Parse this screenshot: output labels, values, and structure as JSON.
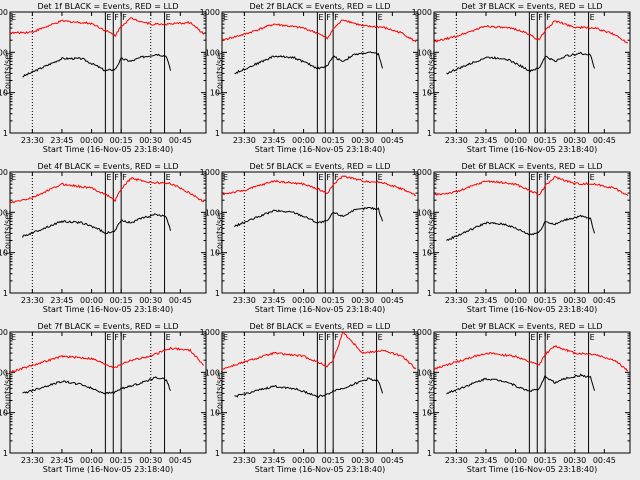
{
  "figure": {
    "background": "#ececec",
    "event_color": "#000000",
    "lld_color": "#ff0000",
    "ylabel": "Counts/sec",
    "xlabel": "Start Time (16-Nov-05 23:18:40)",
    "x_tick_labels": [
      "23:30",
      "23:45",
      "00:00",
      "00:15",
      "00:30",
      "00:45"
    ],
    "y_tick_labels": [
      "1",
      "10",
      "100",
      "1000"
    ],
    "marker_labels": [
      "E",
      "F",
      "F",
      "E"
    ]
  },
  "chart_data": [
    {
      "type": "line",
      "title": "Det 1f BLACK = Events, RED = LLD",
      "ylim": [
        1,
        1000
      ],
      "y_scale": "log",
      "x_time_range": [
        "23:18:40",
        "00:58"
      ],
      "series": [
        {
          "name": "Events",
          "color": "#000000",
          "x": [
            "23:25",
            "23:45",
            "23:55",
            "00:03",
            "00:07",
            "00:12",
            "00:15",
            "00:20",
            "00:25",
            "00:33",
            "00:38",
            "00:40"
          ],
          "values": [
            25,
            70,
            70,
            45,
            35,
            38,
            70,
            60,
            75,
            90,
            80,
            35
          ]
        },
        {
          "name": "LLD",
          "color": "#ff0000",
          "x": [
            "23:18:40",
            "23:30",
            "23:45",
            "00:00",
            "00:07",
            "00:12",
            "00:15",
            "00:20",
            "00:30",
            "00:40",
            "00:50",
            "00:57"
          ],
          "values": [
            300,
            320,
            600,
            520,
            350,
            260,
            450,
            700,
            500,
            500,
            550,
            280
          ]
        }
      ]
    },
    {
      "type": "line",
      "title": "Det 2f BLACK = Events, RED = LLD",
      "ylim": [
        1,
        1000
      ],
      "y_scale": "log",
      "x_time_range": [
        "23:18:40",
        "00:58"
      ],
      "series": [
        {
          "name": "Events",
          "color": "#000000",
          "x": [
            "23:25",
            "23:45",
            "23:55",
            "00:03",
            "00:07",
            "00:12",
            "00:15",
            "00:20",
            "00:25",
            "00:33",
            "00:38",
            "00:40"
          ],
          "values": [
            30,
            80,
            75,
            50,
            40,
            45,
            80,
            60,
            85,
            100,
            90,
            40
          ]
        },
        {
          "name": "LLD",
          "color": "#ff0000",
          "x": [
            "23:18:40",
            "23:30",
            "23:45",
            "00:00",
            "00:07",
            "00:12",
            "00:15",
            "00:20",
            "00:30",
            "00:40",
            "00:50",
            "00:57"
          ],
          "values": [
            200,
            280,
            500,
            400,
            300,
            220,
            380,
            650,
            450,
            420,
            300,
            180
          ]
        }
      ]
    },
    {
      "type": "line",
      "title": "Det 3f BLACK = Events, RED = LLD",
      "ylim": [
        1,
        1000
      ],
      "y_scale": "log",
      "x_time_range": [
        "23:18:40",
        "00:58"
      ],
      "series": [
        {
          "name": "Events",
          "color": "#000000",
          "x": [
            "23:25",
            "23:45",
            "23:55",
            "00:03",
            "00:07",
            "00:12",
            "00:15",
            "00:20",
            "00:25",
            "00:33",
            "00:38",
            "00:40"
          ],
          "values": [
            30,
            75,
            70,
            45,
            35,
            40,
            80,
            60,
            80,
            95,
            85,
            40
          ]
        },
        {
          "name": "LLD",
          "color": "#ff0000",
          "x": [
            "23:18:40",
            "23:30",
            "23:45",
            "00:00",
            "00:07",
            "00:12",
            "00:15",
            "00:20",
            "00:30",
            "00:40",
            "00:50",
            "00:57"
          ],
          "values": [
            180,
            250,
            450,
            380,
            280,
            200,
            350,
            600,
            420,
            400,
            280,
            170
          ]
        }
      ]
    },
    {
      "type": "line",
      "title": "Det 4f BLACK = Events, RED = LLD",
      "ylim": [
        1,
        1000
      ],
      "y_scale": "log",
      "x_time_range": [
        "23:18:40",
        "00:58"
      ],
      "series": [
        {
          "name": "Events",
          "color": "#000000",
          "x": [
            "23:25",
            "23:45",
            "23:55",
            "00:03",
            "00:07",
            "00:12",
            "00:15",
            "00:20",
            "00:25",
            "00:33",
            "00:38",
            "00:40"
          ],
          "values": [
            25,
            60,
            55,
            40,
            30,
            35,
            65,
            55,
            70,
            90,
            75,
            35
          ]
        },
        {
          "name": "LLD",
          "color": "#ff0000",
          "x": [
            "23:18:40",
            "23:30",
            "23:45",
            "00:00",
            "00:07",
            "00:12",
            "00:15",
            "00:20",
            "00:30",
            "00:40",
            "00:50",
            "00:57"
          ],
          "values": [
            170,
            230,
            500,
            400,
            280,
            200,
            380,
            700,
            550,
            520,
            300,
            180
          ]
        }
      ]
    },
    {
      "type": "line",
      "title": "Det 5f BLACK = Events, RED = LLD",
      "ylim": [
        1,
        1000
      ],
      "y_scale": "log",
      "x_time_range": [
        "23:18:40",
        "00:58"
      ],
      "series": [
        {
          "name": "Events",
          "color": "#000000",
          "x": [
            "23:25",
            "23:45",
            "23:55",
            "00:03",
            "00:07",
            "00:12",
            "00:15",
            "00:20",
            "00:25",
            "00:33",
            "00:38",
            "00:40"
          ],
          "values": [
            45,
            110,
            100,
            70,
            55,
            60,
            100,
            80,
            110,
            130,
            120,
            60
          ]
        },
        {
          "name": "LLD",
          "color": "#ff0000",
          "x": [
            "23:18:40",
            "23:30",
            "23:45",
            "00:00",
            "00:07",
            "00:12",
            "00:15",
            "00:20",
            "00:30",
            "00:40",
            "00:50",
            "00:57"
          ],
          "values": [
            280,
            350,
            600,
            500,
            380,
            300,
            480,
            800,
            600,
            550,
            380,
            260
          ]
        }
      ]
    },
    {
      "type": "line",
      "title": "Det 6f BLACK = Events, RED = LLD",
      "ylim": [
        1,
        1000
      ],
      "y_scale": "log",
      "x_time_range": [
        "23:18:40",
        "00:58"
      ],
      "series": [
        {
          "name": "Events",
          "color": "#000000",
          "x": [
            "23:25",
            "23:45",
            "23:55",
            "00:03",
            "00:07",
            "00:12",
            "00:15",
            "00:20",
            "00:25",
            "00:33",
            "00:38",
            "00:40"
          ],
          "values": [
            20,
            55,
            50,
            35,
            28,
            32,
            60,
            50,
            65,
            80,
            70,
            30
          ]
        },
        {
          "name": "LLD",
          "color": "#ff0000",
          "x": [
            "23:18:40",
            "23:30",
            "23:45",
            "00:00",
            "00:07",
            "00:12",
            "00:15",
            "00:20",
            "00:30",
            "00:40",
            "00:50",
            "00:57"
          ],
          "values": [
            270,
            320,
            600,
            500,
            350,
            270,
            450,
            750,
            520,
            500,
            400,
            260
          ]
        }
      ]
    },
    {
      "type": "line",
      "title": "Det 7f BLACK = Events, RED = LLD",
      "ylim": [
        1,
        1000
      ],
      "y_scale": "log",
      "x_time_range": [
        "23:18:40",
        "00:58"
      ],
      "series": [
        {
          "name": "Events",
          "color": "#000000",
          "x": [
            "23:25",
            "23:45",
            "23:55",
            "00:03",
            "00:07",
            "00:12",
            "00:15",
            "00:20",
            "00:25",
            "00:33",
            "00:38",
            "00:40"
          ],
          "values": [
            30,
            60,
            50,
            35,
            30,
            32,
            40,
            45,
            55,
            75,
            65,
            35
          ]
        },
        {
          "name": "LLD",
          "color": "#ff0000",
          "x": [
            "23:18:40",
            "23:30",
            "23:45",
            "00:00",
            "00:07",
            "00:12",
            "00:15",
            "00:20",
            "00:30",
            "00:40",
            "00:50",
            "00:57"
          ],
          "values": [
            100,
            150,
            250,
            220,
            160,
            130,
            160,
            200,
            250,
            400,
            350,
            150
          ]
        }
      ]
    },
    {
      "type": "line",
      "title": "Det 8f BLACK = Events, RED = LLD",
      "ylim": [
        1,
        1000
      ],
      "y_scale": "log",
      "x_time_range": [
        "23:18:40",
        "00:58"
      ],
      "series": [
        {
          "name": "Events",
          "color": "#000000",
          "x": [
            "23:25",
            "23:45",
            "23:55",
            "00:03",
            "00:07",
            "00:12",
            "00:15",
            "00:20",
            "00:25",
            "00:33",
            "00:38",
            "00:40"
          ],
          "values": [
            25,
            45,
            40,
            30,
            25,
            28,
            35,
            40,
            50,
            70,
            60,
            30
          ]
        },
        {
          "name": "LLD",
          "color": "#ff0000",
          "x": [
            "23:18:40",
            "23:30",
            "23:45",
            "00:00",
            "00:07",
            "00:12",
            "00:15",
            "00:20",
            "00:30",
            "00:40",
            "00:50",
            "00:57"
          ],
          "values": [
            120,
            180,
            300,
            250,
            180,
            140,
            200,
            1000,
            300,
            350,
            250,
            120
          ]
        }
      ]
    },
    {
      "type": "line",
      "title": "Det 9f BLACK = Events, RED = LLD",
      "ylim": [
        1,
        1000
      ],
      "y_scale": "log",
      "x_time_range": [
        "23:18:40",
        "00:58"
      ],
      "series": [
        {
          "name": "Events",
          "color": "#000000",
          "x": [
            "23:25",
            "23:45",
            "23:55",
            "00:03",
            "00:07",
            "00:12",
            "00:15",
            "00:20",
            "00:25",
            "00:33",
            "00:38",
            "00:40"
          ],
          "values": [
            30,
            70,
            60,
            40,
            35,
            38,
            80,
            55,
            70,
            85,
            75,
            35
          ]
        },
        {
          "name": "LLD",
          "color": "#ff0000",
          "x": [
            "23:18:40",
            "23:30",
            "23:45",
            "00:00",
            "00:07",
            "00:12",
            "00:15",
            "00:20",
            "00:30",
            "00:40",
            "00:50",
            "00:57"
          ],
          "values": [
            120,
            180,
            300,
            250,
            180,
            150,
            280,
            450,
            300,
            280,
            200,
            110
          ]
        }
      ]
    }
  ]
}
